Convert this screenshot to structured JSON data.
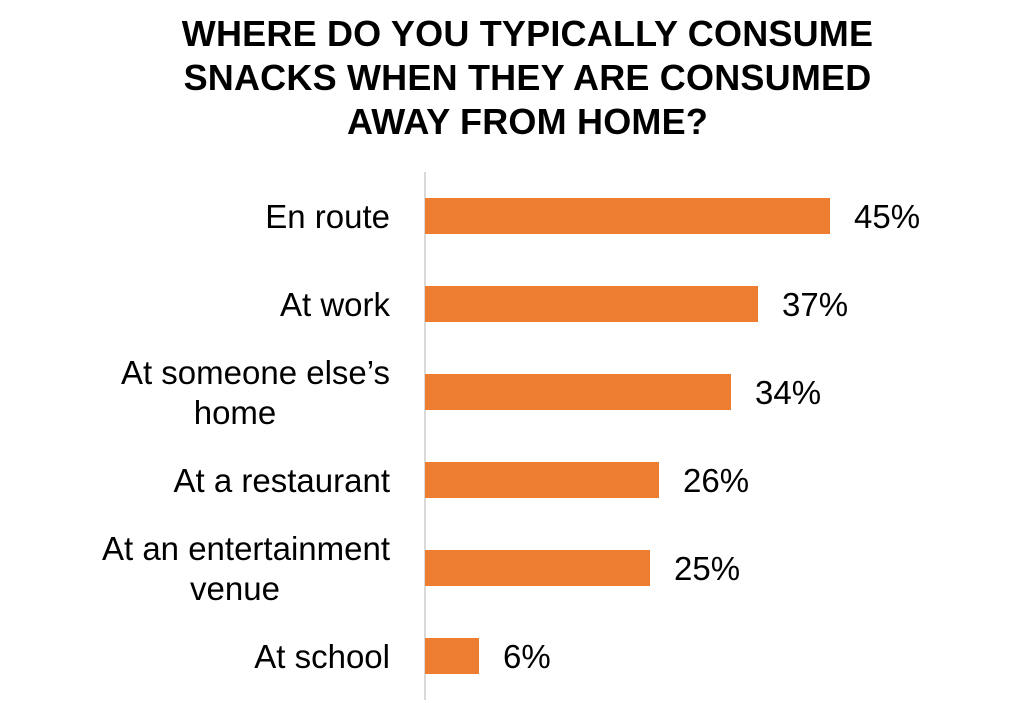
{
  "chart_data": {
    "type": "bar",
    "orientation": "horizontal",
    "title": "WHERE DO YOU TYPICALLY CONSUME SNACKS WHEN THEY ARE CONSUMED AWAY FROM HOME?",
    "title_lines": [
      "WHERE DO YOU TYPICALLY CONSUME",
      "SNACKS WHEN THEY ARE CONSUMED",
      "AWAY FROM HOME?"
    ],
    "categories": [
      [
        "En route"
      ],
      [
        "At work"
      ],
      [
        "At someone else’s",
        "home"
      ],
      [
        "At a restaurant"
      ],
      [
        "At an entertainment",
        "venue"
      ],
      [
        "At school"
      ]
    ],
    "values": [
      45,
      37,
      34,
      26,
      25,
      6
    ],
    "value_labels": [
      "45%",
      "37%",
      "34%",
      "26%",
      "25%",
      "6%"
    ],
    "unit": "%",
    "xlim": [
      0,
      50
    ],
    "grid": false,
    "legend": "none",
    "bar_color": "#ED7D31",
    "axis_color": "#D9D9D9"
  }
}
